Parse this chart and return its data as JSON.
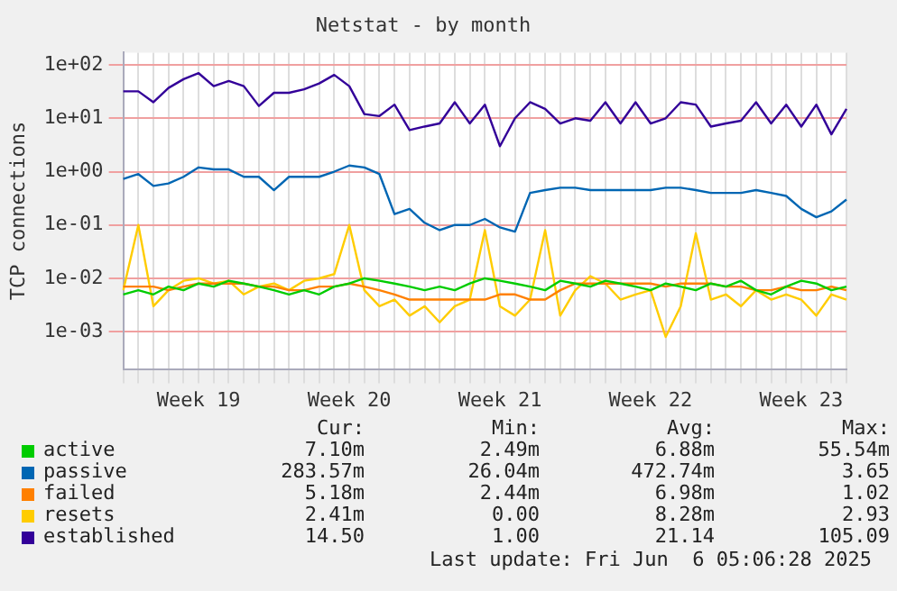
{
  "chart_data": {
    "type": "line",
    "title": "Netstat - by month",
    "ylabel": "TCP connections",
    "categories": [
      null,
      null,
      null,
      null,
      null,
      "Week 19",
      null,
      null,
      null,
      null,
      null,
      null,
      null,
      null,
      null,
      "Week 20",
      null,
      null,
      null,
      null,
      null,
      null,
      null,
      null,
      null,
      "Week 21",
      null,
      null,
      null,
      null,
      null,
      null,
      null,
      null,
      null,
      "Week 22",
      null,
      null,
      null,
      null,
      null,
      null,
      null,
      null,
      null,
      "Week 23",
      null,
      null,
      null
    ],
    "series": [
      {
        "name": "active",
        "color": "#00cc00",
        "values": [
          0.005,
          0.006,
          0.005,
          0.007,
          0.006,
          0.008,
          0.007,
          0.009,
          0.008,
          0.007,
          0.006,
          0.005,
          0.006,
          0.005,
          0.007,
          0.008,
          0.01,
          0.009,
          0.008,
          0.007,
          0.006,
          0.007,
          0.006,
          0.008,
          0.01,
          0.009,
          0.008,
          0.007,
          0.006,
          0.009,
          0.008,
          0.007,
          0.009,
          0.008,
          0.007,
          0.006,
          0.008,
          0.007,
          0.006,
          0.008,
          0.007,
          0.009,
          0.006,
          0.005,
          0.007,
          0.009,
          0.008,
          0.006,
          0.007
        ]
      },
      {
        "name": "passive",
        "color": "#0066b3",
        "values": [
          0.73,
          0.9,
          0.54,
          0.6,
          0.8,
          1.2,
          1.1,
          1.1,
          0.8,
          0.8,
          0.45,
          0.8,
          0.8,
          0.8,
          1.0,
          1.3,
          1.2,
          0.9,
          0.16,
          0.2,
          0.11,
          0.08,
          0.1,
          0.1,
          0.13,
          0.09,
          0.075,
          0.4,
          0.45,
          0.5,
          0.5,
          0.45,
          0.45,
          0.45,
          0.45,
          0.45,
          0.5,
          0.5,
          0.45,
          0.4,
          0.4,
          0.4,
          0.45,
          0.4,
          0.35,
          0.2,
          0.14,
          0.18,
          0.3
        ]
      },
      {
        "name": "failed",
        "color": "#ff8000",
        "values": [
          0.007,
          0.007,
          0.007,
          0.006,
          0.007,
          0.008,
          0.008,
          0.008,
          0.008,
          0.007,
          0.007,
          0.006,
          0.006,
          0.007,
          0.007,
          0.008,
          0.007,
          0.006,
          0.005,
          0.004,
          0.004,
          0.004,
          0.004,
          0.004,
          0.004,
          0.005,
          0.005,
          0.004,
          0.004,
          0.006,
          0.008,
          0.008,
          0.008,
          0.008,
          0.008,
          0.008,
          0.007,
          0.008,
          0.008,
          0.008,
          0.007,
          0.007,
          0.006,
          0.006,
          0.007,
          0.006,
          0.006,
          0.007,
          0.006
        ]
      },
      {
        "name": "resets",
        "color": "#ffcc00",
        "values": [
          0.006,
          0.1,
          0.003,
          0.006,
          0.009,
          0.01,
          0.008,
          0.009,
          0.005,
          0.007,
          0.008,
          0.006,
          0.009,
          0.01,
          0.012,
          0.1,
          0.006,
          0.003,
          0.004,
          0.002,
          0.003,
          0.0015,
          0.003,
          0.004,
          0.08,
          0.003,
          0.002,
          0.004,
          0.08,
          0.002,
          0.006,
          0.011,
          0.008,
          0.004,
          0.005,
          0.006,
          0.0008,
          0.003,
          0.07,
          0.004,
          0.005,
          0.003,
          0.006,
          0.004,
          0.005,
          0.004,
          0.002,
          0.005,
          0.004
        ]
      },
      {
        "name": "established",
        "color": "#330099",
        "values": [
          32,
          32,
          20,
          37,
          54,
          70,
          40,
          50,
          40,
          17,
          30,
          30,
          35,
          45,
          65,
          40,
          12,
          11,
          18,
          6,
          7,
          8,
          20,
          8,
          18,
          3,
          10,
          20,
          15,
          8,
          10,
          9,
          20,
          8,
          20,
          8,
          10,
          20,
          18,
          7,
          8,
          9,
          20,
          8,
          18,
          7,
          18,
          5,
          15
        ]
      }
    ],
    "log": "y",
    "ylim": [
      0.0002,
      170
    ],
    "yticks": [
      {
        "value": 0.001,
        "label": "1e-03"
      },
      {
        "value": 0.01,
        "label": "1e-02"
      },
      {
        "value": 0.1,
        "label": "1e-01"
      },
      {
        "value": 1,
        "label": "1e+00"
      },
      {
        "value": 10,
        "label": "1e+01"
      },
      {
        "value": 100,
        "label": "1e+02"
      }
    ],
    "grid": true,
    "legend": "bottom",
    "annotations": [
      "Cur:",
      "Min:",
      "Avg:",
      "Max:",
      "7.10m",
      "2.49m",
      "6.88m",
      "55.54m",
      "283.57m",
      "26.04m",
      "472.74m",
      "3.65",
      "5.18m",
      "2.44m",
      "6.98m",
      "1.02",
      "2.41m",
      "0.00",
      "8.28m",
      "2.93",
      "14.50",
      "1.00",
      "21.14",
      "105.09",
      "Last update: Fri Jun  6 05:06:28 2025"
    ]
  }
}
